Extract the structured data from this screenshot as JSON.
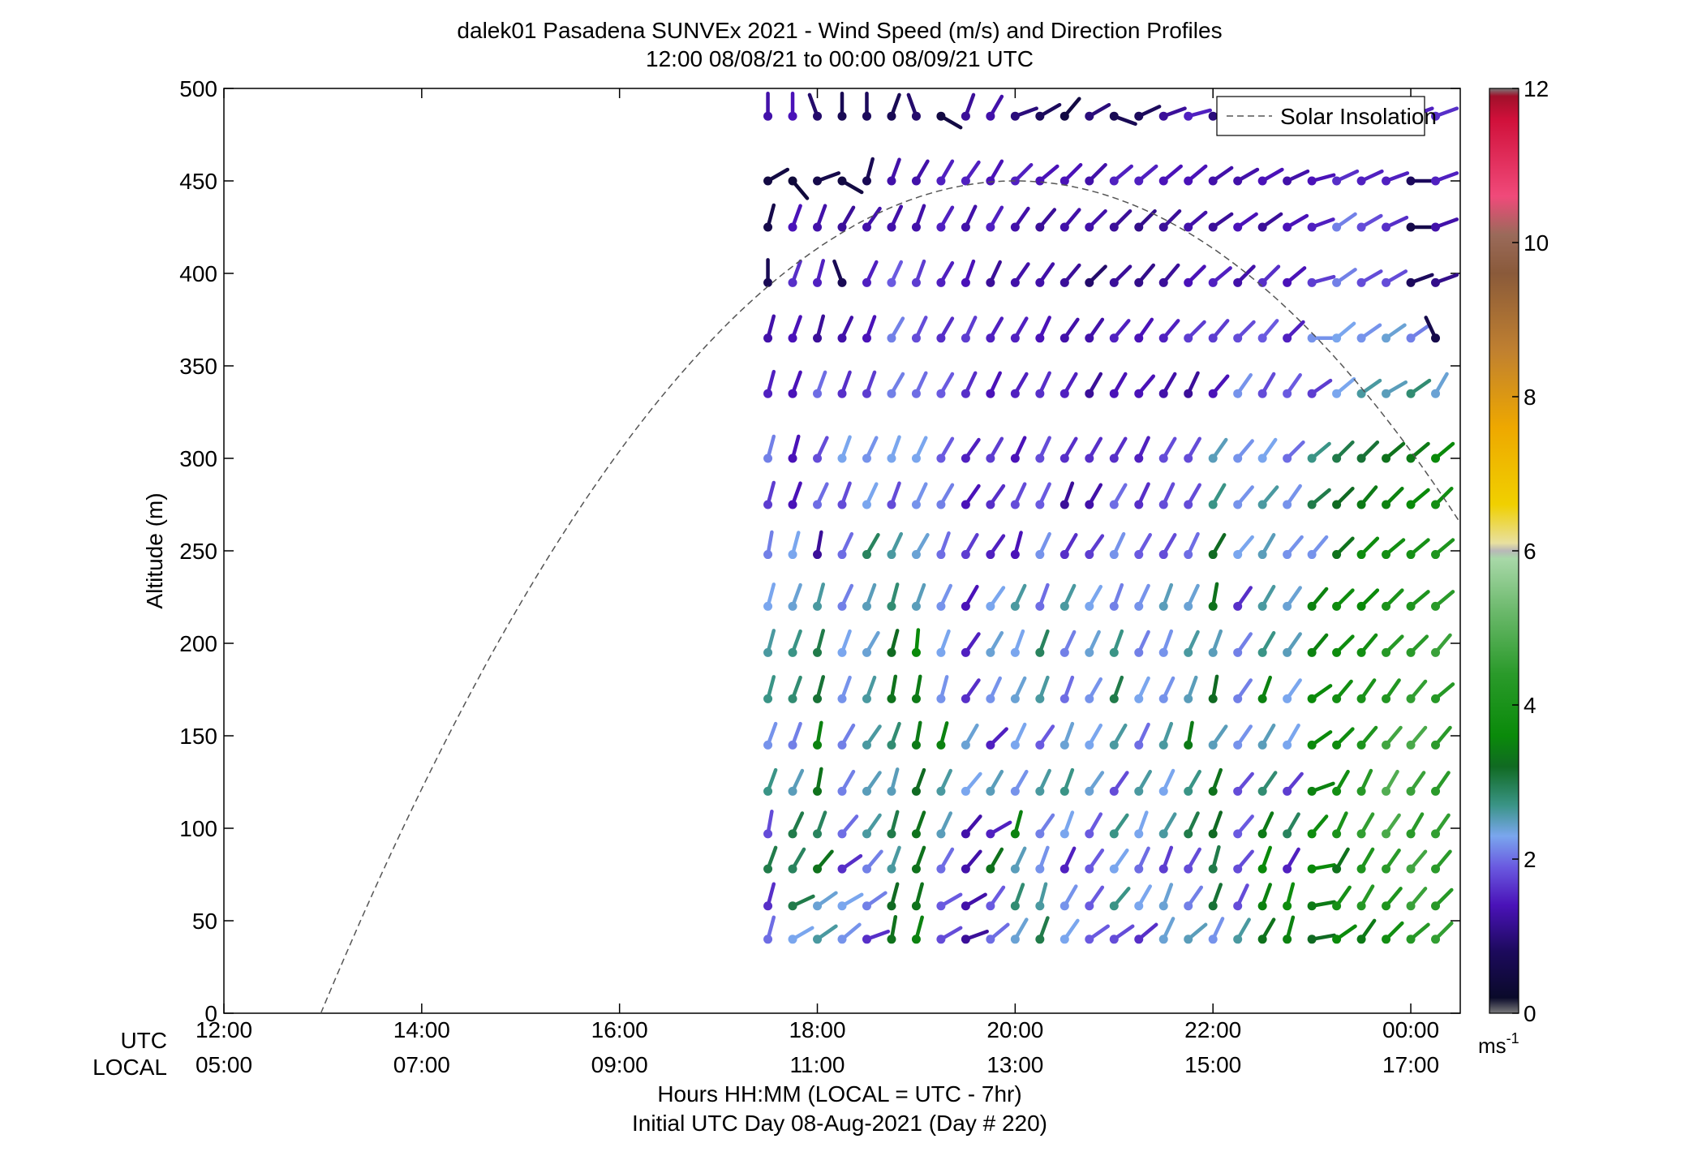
{
  "chart_data": {
    "type": "scatter",
    "subtype": "wind-barb-profile",
    "title": "dalek01 Pasadena SUNVEx 2021 - Wind Speed (m/s) and Direction Profiles",
    "subtitle": "12:00 08/08/21 to 00:00 08/09/21  UTC",
    "ylabel": "Altitude (m)",
    "xlabel": "Hours HH:MM  (LOCAL = UTC - 7hr)",
    "xlabel2": "Initial UTC Day 08-Aug-2021 (Day # 220)",
    "xlim": [
      12,
      24.5
    ],
    "ylim": [
      0,
      500
    ],
    "y_ticks": [
      0,
      50,
      100,
      150,
      200,
      250,
      300,
      350,
      400,
      450,
      500
    ],
    "x_ticks": [
      {
        "hour": 12,
        "utc": "12:00",
        "local": "05:00"
      },
      {
        "hour": 14,
        "utc": "14:00",
        "local": "07:00"
      },
      {
        "hour": 16,
        "utc": "16:00",
        "local": "09:00"
      },
      {
        "hour": 18,
        "utc": "18:00",
        "local": "11:00"
      },
      {
        "hour": 20,
        "utc": "20:00",
        "local": "13:00"
      },
      {
        "hour": 22,
        "utc": "22:00",
        "local": "15:00"
      },
      {
        "hour": 24,
        "utc": "00:00",
        "local": "17:00"
      }
    ],
    "x_row_labels": {
      "utc": "UTC",
      "local": "LOCAL"
    },
    "legend": {
      "label": "Solar Insolation",
      "position": "top-right",
      "style": "dashed",
      "color": "#555555"
    },
    "solar_insolation": {
      "start_hour": 12.98,
      "peak_hour": 20.0,
      "peak_altitude": 450,
      "end_hour": 24.5,
      "end_altitude": 225
    },
    "colorbar": {
      "min": 0,
      "max": 12,
      "ticks": [
        0,
        2,
        4,
        6,
        8,
        10,
        12
      ],
      "unit": "ms",
      "unit_sup": "-1",
      "stops": [
        {
          "v": 0.0,
          "c": "#7a7a7a"
        },
        {
          "v": 0.2,
          "c": "#0a0a2a"
        },
        {
          "v": 0.8,
          "c": "#1c0a5c"
        },
        {
          "v": 1.4,
          "c": "#4a12b8"
        },
        {
          "v": 1.9,
          "c": "#6a5ae0"
        },
        {
          "v": 2.3,
          "c": "#7aa6ee"
        },
        {
          "v": 2.7,
          "c": "#3a9486"
        },
        {
          "v": 3.2,
          "c": "#106a22"
        },
        {
          "v": 3.6,
          "c": "#0a8a0a"
        },
        {
          "v": 4.4,
          "c": "#2a9a2a"
        },
        {
          "v": 5.2,
          "c": "#6ab86a"
        },
        {
          "v": 5.9,
          "c": "#a8d8a8"
        },
        {
          "v": 6.0,
          "c": "#b8b8b8"
        },
        {
          "v": 6.1,
          "c": "#e8e0a0"
        },
        {
          "v": 6.6,
          "c": "#f0d000"
        },
        {
          "v": 7.6,
          "c": "#eea800"
        },
        {
          "v": 8.6,
          "c": "#c08030"
        },
        {
          "v": 9.6,
          "c": "#8a5a3a"
        },
        {
          "v": 10.1,
          "c": "#9a6a5a"
        },
        {
          "v": 10.6,
          "c": "#f04a7a"
        },
        {
          "v": 11.6,
          "c": "#d0103a"
        },
        {
          "v": 11.9,
          "c": "#a0102a"
        },
        {
          "v": 12.0,
          "c": "#7a7a7a"
        }
      ]
    },
    "profiles": {
      "start_hour": 17.5,
      "step_hour": 0.25,
      "altitudes": [
        40,
        58,
        78,
        97,
        120,
        145,
        170,
        195,
        220,
        248,
        275,
        300,
        335,
        365,
        395,
        425,
        450,
        485
      ],
      "speed_rows": [
        [
          2.0,
          2.3,
          2.6,
          2.2,
          1.6,
          3.3,
          3.5,
          1.8,
          1.2,
          2.0,
          2.4,
          3.0,
          2.3,
          1.9,
          1.8,
          1.6,
          2.4,
          2.5,
          2.2,
          2.6,
          3.3,
          3.5,
          3.2,
          3.6,
          3.4,
          3.8,
          4.3,
          4.5
        ],
        [
          1.6,
          3.0,
          2.4,
          2.3,
          2.1,
          3.2,
          3.3,
          1.9,
          1.3,
          1.9,
          2.8,
          2.6,
          2.2,
          1.9,
          2.7,
          2.3,
          2.4,
          2.1,
          3.1,
          1.8,
          3.5,
          3.7,
          3.4,
          3.9,
          4.3,
          4.1,
          4.6,
          4.3
        ],
        [
          3.0,
          2.9,
          3.3,
          1.6,
          2.1,
          2.6,
          3.3,
          2.0,
          1.3,
          3.3,
          2.5,
          2.2,
          1.5,
          1.9,
          2.3,
          2.0,
          1.7,
          1.8,
          3.0,
          1.8,
          3.6,
          1.5,
          3.6,
          3.3,
          4.1,
          4.4,
          4.7,
          4.4
        ],
        [
          1.8,
          3.0,
          2.9,
          2.0,
          2.6,
          3.0,
          3.3,
          2.5,
          1.3,
          1.5,
          3.5,
          2.1,
          2.3,
          1.9,
          2.7,
          2.3,
          2.6,
          3.0,
          3.2,
          1.9,
          3.4,
          2.9,
          3.7,
          4.0,
          4.5,
          4.8,
          4.4,
          4.5
        ],
        [
          2.7,
          2.5,
          3.3,
          2.1,
          2.5,
          2.5,
          3.2,
          2.6,
          2.3,
          2.5,
          2.2,
          2.6,
          2.7,
          2.4,
          1.8,
          2.6,
          2.3,
          2.7,
          3.3,
          1.8,
          2.8,
          1.7,
          3.5,
          3.8,
          4.3,
          4.9,
          4.6,
          4.4
        ],
        [
          2.2,
          2.1,
          3.5,
          2.1,
          2.6,
          2.8,
          3.4,
          3.5,
          2.4,
          1.5,
          2.3,
          1.9,
          2.4,
          2.3,
          2.6,
          2.0,
          2.6,
          3.4,
          2.5,
          2.2,
          2.5,
          2.3,
          3.6,
          3.7,
          4.1,
          4.7,
          4.8,
          4.4
        ],
        [
          2.7,
          2.8,
          3.1,
          2.2,
          2.6,
          3.3,
          3.4,
          2.2,
          1.6,
          2.2,
          2.4,
          2.6,
          2.0,
          2.2,
          3.0,
          2.3,
          2.2,
          2.5,
          3.2,
          2.1,
          3.5,
          2.3,
          3.6,
          3.8,
          4.0,
          4.2,
          4.5,
          4.3
        ],
        [
          2.6,
          2.7,
          3.0,
          2.3,
          2.4,
          3.2,
          3.6,
          2.3,
          1.5,
          2.4,
          2.3,
          2.9,
          2.1,
          2.4,
          2.7,
          2.1,
          2.2,
          2.6,
          2.5,
          2.1,
          2.7,
          2.5,
          3.5,
          3.7,
          3.8,
          4.3,
          4.4,
          4.6
        ],
        [
          2.3,
          2.4,
          2.6,
          2.1,
          2.5,
          2.8,
          2.5,
          2.2,
          1.4,
          2.3,
          2.6,
          2.0,
          2.6,
          2.3,
          2.1,
          2.2,
          2.5,
          2.4,
          3.3,
          1.6,
          2.6,
          2.4,
          3.5,
          3.7,
          3.6,
          4.0,
          4.1,
          4.4
        ],
        [
          2.1,
          2.3,
          1.2,
          2.0,
          2.9,
          2.6,
          2.4,
          2.0,
          1.7,
          1.5,
          1.4,
          2.2,
          1.6,
          1.7,
          2.2,
          1.9,
          1.8,
          2.0,
          3.2,
          2.3,
          2.5,
          2.2,
          2.2,
          3.3,
          3.7,
          3.8,
          3.9,
          4.1
        ],
        [
          1.7,
          1.4,
          2.0,
          1.8,
          2.3,
          1.8,
          2.2,
          2.1,
          1.4,
          1.6,
          1.8,
          1.9,
          1.2,
          1.3,
          2.0,
          1.6,
          1.8,
          1.8,
          2.7,
          2.2,
          2.6,
          2.2,
          3.0,
          3.2,
          3.4,
          3.5,
          3.6,
          3.8
        ],
        [
          2.1,
          1.4,
          1.8,
          2.3,
          2.2,
          2.3,
          2.3,
          1.9,
          1.5,
          1.7,
          1.4,
          1.8,
          1.6,
          1.6,
          1.6,
          1.5,
          1.8,
          1.8,
          2.5,
          2.2,
          2.3,
          2.0,
          2.7,
          3.0,
          3.1,
          3.3,
          3.4,
          3.6
        ],
        [
          1.5,
          1.4,
          2.0,
          1.6,
          1.7,
          2.1,
          2.0,
          1.9,
          1.6,
          1.4,
          1.5,
          1.6,
          1.5,
          1.2,
          1.4,
          1.4,
          1.3,
          1.2,
          1.4,
          2.2,
          1.8,
          1.9,
          1.7,
          2.3,
          2.6,
          2.5,
          2.8,
          2.4
        ],
        [
          1.3,
          1.4,
          1.2,
          1.3,
          1.4,
          2.1,
          1.8,
          1.6,
          1.7,
          1.5,
          1.5,
          1.4,
          1.3,
          1.3,
          1.5,
          1.4,
          1.5,
          1.7,
          1.7,
          1.8,
          1.9,
          1.5,
          2.2,
          2.3,
          2.2,
          2.4,
          2.1,
          0.6
        ],
        [
          0.7,
          1.6,
          1.5,
          0.7,
          1.5,
          1.9,
          1.7,
          1.5,
          1.4,
          1.2,
          1.3,
          1.3,
          1.2,
          0.9,
          1.2,
          1.1,
          1.2,
          1.4,
          1.5,
          1.3,
          1.6,
          1.4,
          1.7,
          2.1,
          1.8,
          1.8,
          0.8,
          1.1
        ],
        [
          0.6,
          1.4,
          1.3,
          1.2,
          1.3,
          1.3,
          1.3,
          1.5,
          1.3,
          1.5,
          1.3,
          1.2,
          1.3,
          1.3,
          1.2,
          1.1,
          1.2,
          1.3,
          1.2,
          1.4,
          1.2,
          1.4,
          1.5,
          2.1,
          1.8,
          1.6,
          0.6,
          1.3
        ],
        [
          0.5,
          0.4,
          0.6,
          0.5,
          0.7,
          1.3,
          1.3,
          1.5,
          1.5,
          1.4,
          1.5,
          1.4,
          1.4,
          1.3,
          1.5,
          1.5,
          1.4,
          1.4,
          1.3,
          1.3,
          1.4,
          1.3,
          1.4,
          1.6,
          1.5,
          1.5,
          0.8,
          1.5
        ],
        [
          1.3,
          1.4,
          0.9,
          0.7,
          0.8,
          0.7,
          0.9,
          0.5,
          1.2,
          1.3,
          1.0,
          0.8,
          0.5,
          1.0,
          0.7,
          0.8,
          1.2,
          1.5,
          1.0,
          1.3,
          1.4,
          1.5,
          1.5,
          1.3,
          1.5,
          1.4,
          1.5,
          1.6
        ]
      ],
      "direction_rows": [
        [
          195,
          240,
          235,
          230,
          250,
          190,
          195,
          240,
          250,
          230,
          210,
          200,
          215,
          235,
          235,
          230,
          205,
          230,
          205,
          210,
          210,
          195,
          260,
          235,
          215,
          225,
          230,
          225
        ],
        [
          195,
          245,
          235,
          240,
          235,
          195,
          195,
          240,
          240,
          215,
          200,
          195,
          210,
          215,
          220,
          210,
          200,
          215,
          200,
          205,
          200,
          195,
          260,
          215,
          210,
          220,
          220,
          225
        ],
        [
          200,
          210,
          220,
          235,
          220,
          200,
          200,
          210,
          220,
          210,
          205,
          200,
          205,
          215,
          215,
          205,
          200,
          210,
          195,
          220,
          200,
          210,
          260,
          210,
          210,
          215,
          220,
          220
        ],
        [
          190,
          205,
          200,
          220,
          215,
          195,
          200,
          205,
          220,
          240,
          195,
          215,
          200,
          210,
          215,
          200,
          210,
          205,
          200,
          220,
          205,
          210,
          220,
          205,
          210,
          215,
          210,
          215
        ],
        [
          200,
          205,
          190,
          210,
          215,
          195,
          200,
          205,
          220,
          210,
          210,
          205,
          200,
          215,
          215,
          210,
          205,
          210,
          200,
          220,
          215,
          220,
          250,
          210,
          205,
          210,
          215,
          215
        ],
        [
          200,
          200,
          190,
          210,
          215,
          200,
          190,
          195,
          210,
          225,
          205,
          215,
          200,
          210,
          210,
          205,
          200,
          190,
          215,
          215,
          210,
          210,
          235,
          225,
          220,
          220,
          220,
          220
        ],
        [
          195,
          200,
          195,
          200,
          200,
          190,
          190,
          195,
          215,
          205,
          205,
          200,
          200,
          210,
          200,
          205,
          205,
          200,
          190,
          215,
          200,
          215,
          235,
          220,
          215,
          215,
          220,
          230
        ],
        [
          195,
          200,
          195,
          200,
          210,
          195,
          185,
          200,
          215,
          210,
          200,
          200,
          205,
          205,
          200,
          205,
          200,
          205,
          200,
          215,
          210,
          215,
          220,
          225,
          220,
          225,
          225,
          220
        ],
        [
          195,
          200,
          195,
          205,
          200,
          195,
          200,
          205,
          210,
          215,
          205,
          200,
          205,
          210,
          200,
          205,
          200,
          205,
          190,
          215,
          210,
          215,
          220,
          225,
          225,
          225,
          230,
          230
        ],
        [
          190,
          195,
          190,
          205,
          210,
          205,
          210,
          200,
          210,
          215,
          195,
          205,
          210,
          215,
          205,
          210,
          210,
          205,
          210,
          220,
          210,
          220,
          220,
          225,
          225,
          230,
          230,
          230
        ],
        [
          195,
          200,
          205,
          200,
          205,
          200,
          205,
          210,
          215,
          215,
          205,
          205,
          200,
          210,
          210,
          205,
          205,
          210,
          210,
          220,
          220,
          215,
          230,
          225,
          220,
          225,
          230,
          225
        ],
        [
          195,
          195,
          205,
          200,
          205,
          200,
          205,
          210,
          215,
          210,
          205,
          205,
          210,
          210,
          210,
          205,
          210,
          210,
          215,
          220,
          215,
          225,
          230,
          225,
          225,
          230,
          230,
          230
        ],
        [
          195,
          200,
          200,
          200,
          200,
          210,
          205,
          210,
          205,
          205,
          210,
          205,
          210,
          210,
          210,
          220,
          210,
          205,
          220,
          215,
          210,
          215,
          235,
          230,
          235,
          240,
          235,
          210
        ],
        [
          195,
          200,
          195,
          205,
          200,
          210,
          205,
          210,
          205,
          210,
          210,
          205,
          215,
          215,
          220,
          215,
          220,
          225,
          220,
          225,
          220,
          225,
          270,
          230,
          235,
          235,
          235,
          155
        ],
        [
          180,
          200,
          195,
          160,
          205,
          205,
          200,
          210,
          200,
          205,
          215,
          215,
          220,
          225,
          225,
          220,
          220,
          225,
          230,
          225,
          225,
          230,
          255,
          235,
          240,
          240,
          250,
          250
        ],
        [
          195,
          200,
          200,
          210,
          215,
          205,
          200,
          210,
          205,
          210,
          215,
          220,
          220,
          225,
          225,
          225,
          225,
          230,
          235,
          235,
          235,
          240,
          250,
          235,
          240,
          245,
          270,
          250
        ],
        [
          240,
          320,
          250,
          300,
          195,
          200,
          210,
          210,
          215,
          210,
          225,
          230,
          225,
          225,
          230,
          230,
          230,
          230,
          235,
          240,
          240,
          245,
          255,
          245,
          245,
          250,
          270,
          250
        ],
        [
          180,
          180,
          160,
          180,
          180,
          200,
          160,
          300,
          200,
          210,
          250,
          240,
          220,
          240,
          290,
          245,
          250,
          255,
          250,
          240,
          245,
          250,
          250,
          250,
          250,
          255,
          250,
          250
        ]
      ]
    }
  }
}
